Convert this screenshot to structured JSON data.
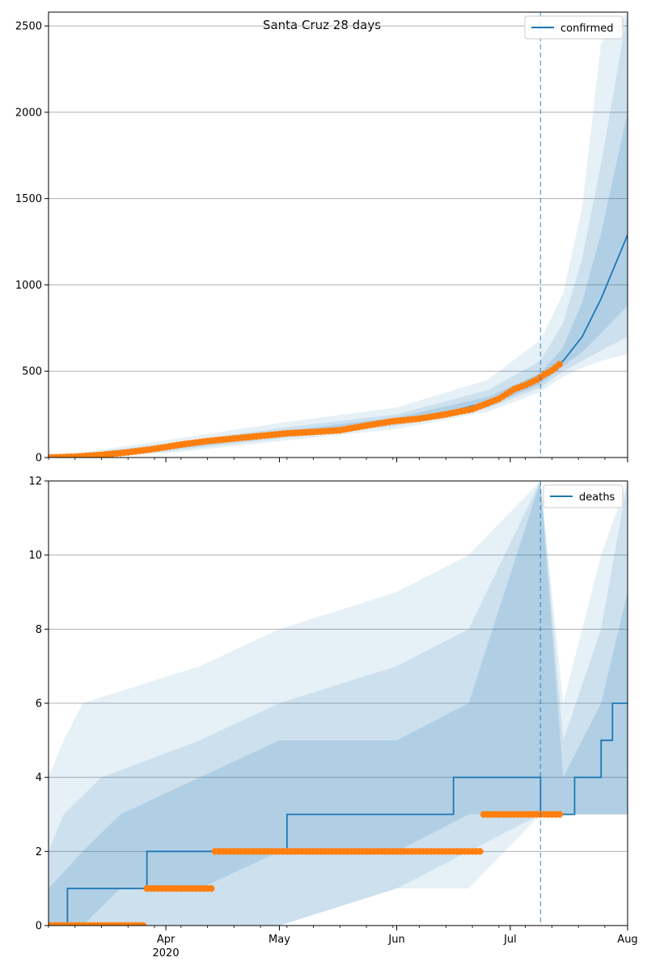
{
  "figure_title": "Santa Cruz 28 days",
  "colors": {
    "model": "#1f77b4",
    "observed": "#ff7f0e",
    "grid": "#b0b0b0",
    "band": "#1f77b4"
  },
  "x_axis": {
    "tick_labels": [
      "Apr",
      "May",
      "Jun",
      "Jul",
      "Aug"
    ],
    "year_label": "2020"
  },
  "chart_data": [
    {
      "type": "line",
      "legend": "confirmed",
      "legend_position": "top-right",
      "grid": "y",
      "ylim": [
        0,
        2580
      ],
      "y_ticks": [
        0,
        500,
        1000,
        1500,
        2000,
        2500
      ],
      "x_range": [
        "2020-03-01",
        "2020-08-01"
      ],
      "forecast_start": "2020-07-09",
      "median": {
        "x": [
          "2020-03-01",
          "2020-03-15",
          "2020-04-01",
          "2020-04-15",
          "2020-05-01",
          "2020-05-15",
          "2020-06-01",
          "2020-06-15",
          "2020-06-25",
          "2020-07-01",
          "2020-07-09",
          "2020-07-15",
          "2020-07-20",
          "2020-07-25",
          "2020-08-01"
        ],
        "y": [
          0,
          12,
          55,
          95,
          135,
          160,
          215,
          265,
          320,
          375,
          450,
          560,
          700,
          920,
          1290
        ]
      },
      "bands": [
        {
          "x": [
            "2020-03-01",
            "2020-04-01",
            "2020-05-01",
            "2020-06-01",
            "2020-06-25",
            "2020-07-09",
            "2020-07-15",
            "2020-07-20",
            "2020-07-25",
            "2020-08-01"
          ],
          "lower": [
            0,
            25,
            95,
            165,
            265,
            380,
            470,
            520,
            560,
            600
          ],
          "upper": [
            0,
            100,
            200,
            290,
            450,
            680,
            950,
            1450,
            2400,
            2580
          ]
        },
        {
          "x": [
            "2020-03-01",
            "2020-04-01",
            "2020-05-01",
            "2020-06-01",
            "2020-06-25",
            "2020-07-09",
            "2020-07-15",
            "2020-07-20",
            "2020-07-25",
            "2020-08-01"
          ],
          "lower": [
            0,
            35,
            110,
            185,
            285,
            405,
            500,
            560,
            620,
            700
          ],
          "upper": [
            0,
            80,
            170,
            250,
            390,
            560,
            780,
            1150,
            1700,
            2580
          ]
        },
        {
          "x": [
            "2020-03-01",
            "2020-04-01",
            "2020-05-01",
            "2020-06-01",
            "2020-06-25",
            "2020-07-09",
            "2020-07-15",
            "2020-07-20",
            "2020-07-25",
            "2020-08-01"
          ],
          "lower": [
            0,
            45,
            122,
            200,
            300,
            425,
            530,
            610,
            720,
            880
          ],
          "upper": [
            0,
            68,
            150,
            232,
            350,
            490,
            640,
            900,
            1300,
            2000
          ]
        }
      ],
      "observed": {
        "x": [
          "2020-03-01",
          "2020-03-08",
          "2020-03-15",
          "2020-03-22",
          "2020-03-29",
          "2020-04-05",
          "2020-04-12",
          "2020-04-19",
          "2020-04-26",
          "2020-05-03",
          "2020-05-10",
          "2020-05-17",
          "2020-05-24",
          "2020-05-31",
          "2020-06-07",
          "2020-06-14",
          "2020-06-21",
          "2020-06-28",
          "2020-07-02",
          "2020-07-05",
          "2020-07-08",
          "2020-07-10",
          "2020-07-12",
          "2020-07-14"
        ],
        "y": [
          0,
          5,
          15,
          30,
          50,
          75,
          95,
          110,
          125,
          140,
          148,
          158,
          185,
          210,
          225,
          250,
          280,
          340,
          395,
          420,
          450,
          480,
          505,
          540
        ]
      }
    },
    {
      "type": "line",
      "legend": "deaths",
      "legend_position": "top-right",
      "grid": "y",
      "ylim": [
        0,
        12
      ],
      "y_ticks": [
        0,
        2,
        4,
        6,
        8,
        10,
        12
      ],
      "x_range": [
        "2020-03-01",
        "2020-08-01"
      ],
      "forecast_start": "2020-07-09",
      "median": {
        "x": [
          "2020-03-01",
          "2020-03-06",
          "2020-03-27",
          "2020-04-25",
          "2020-05-03",
          "2020-06-16",
          "2020-07-09",
          "2020-07-09",
          "2020-07-18",
          "2020-07-25",
          "2020-07-28",
          "2020-08-01"
        ],
        "y": [
          0,
          1,
          2,
          2,
          3,
          4,
          4,
          3,
          4,
          5,
          6,
          6
        ]
      },
      "bands": [
        {
          "x": [
            "2020-03-01",
            "2020-03-05",
            "2020-03-10",
            "2020-04-10",
            "2020-05-01",
            "2020-06-01",
            "2020-06-20",
            "2020-07-09",
            "2020-07-15",
            "2020-07-25",
            "2020-08-01"
          ],
          "lower": [
            0,
            0,
            0,
            0,
            0,
            1,
            1,
            3,
            3,
            3,
            3
          ],
          "upper": [
            4,
            5,
            6,
            7,
            8,
            9,
            10,
            12,
            6,
            10,
            12
          ]
        },
        {
          "x": [
            "2020-03-01",
            "2020-03-05",
            "2020-03-15",
            "2020-04-10",
            "2020-05-01",
            "2020-06-01",
            "2020-06-20",
            "2020-07-09",
            "2020-07-15",
            "2020-07-25",
            "2020-08-01"
          ],
          "lower": [
            0,
            0,
            0,
            0,
            0,
            1,
            2,
            3,
            3,
            3,
            3
          ],
          "upper": [
            2,
            3,
            4,
            5,
            6,
            7,
            8,
            12,
            5,
            8,
            12
          ]
        },
        {
          "x": [
            "2020-03-01",
            "2020-03-10",
            "2020-03-20",
            "2020-04-10",
            "2020-05-01",
            "2020-06-01",
            "2020-06-20",
            "2020-07-09",
            "2020-07-15",
            "2020-07-25",
            "2020-08-01"
          ],
          "lower": [
            0,
            0,
            1,
            1,
            2,
            2,
            3,
            3,
            3,
            3,
            3
          ],
          "upper": [
            1,
            2,
            3,
            4,
            5,
            5,
            6,
            12,
            4,
            6,
            9
          ]
        }
      ],
      "observed": {
        "x": [
          "2020-03-01",
          "2020-03-26",
          "2020-03-27",
          "2020-04-13",
          "2020-04-14",
          "2020-06-23",
          "2020-06-24",
          "2020-07-14"
        ],
        "y": [
          0,
          0,
          1,
          1,
          2,
          2,
          3,
          3
        ]
      }
    }
  ]
}
